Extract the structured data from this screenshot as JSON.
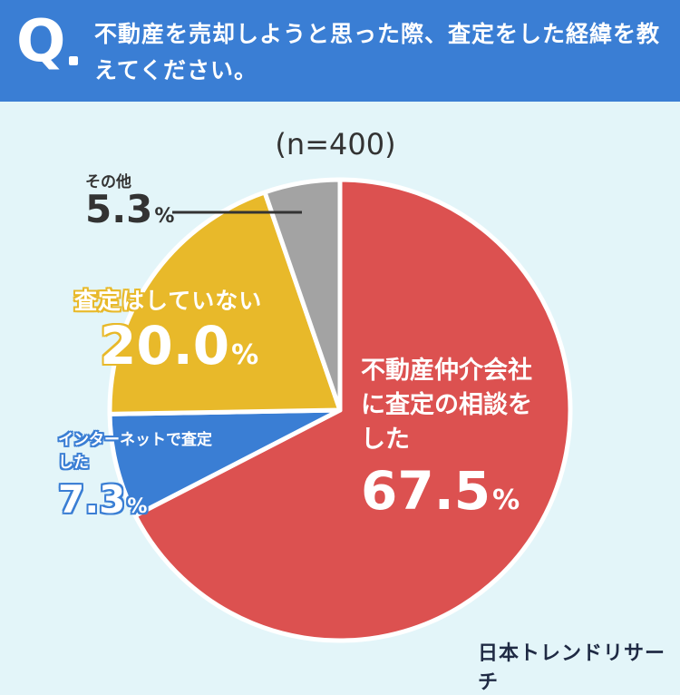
{
  "header": {
    "q_mark": "Q",
    "question": "不動産を売却しようと思った際、査定をした経緯を教えてください。"
  },
  "sample_label": "(n=400)",
  "brand": "日本トレンドリサーチ",
  "colors": {
    "header_bg": "#3a7ed4",
    "page_bg": "#e3f5f9",
    "red": "#dc5150",
    "blue": "#3a7ed4",
    "yellow": "#e8b92a",
    "gray": "#a3a3a3"
  },
  "labels": {
    "red": {
      "name": "不動産仲介会社に査定の相談をした",
      "value": "67.5",
      "unit": "%"
    },
    "blue": {
      "name": "インターネットで査定した",
      "value": "7.3",
      "unit": "%"
    },
    "yellow": {
      "name": "査定はしていない",
      "value": "20.0",
      "unit": "%"
    },
    "other": {
      "name": "その他",
      "value": "5.3",
      "unit": "%"
    }
  },
  "chart_data": {
    "type": "pie",
    "title": "",
    "n": 400,
    "start": "12 o'clock, clockwise",
    "slices": [
      {
        "label": "不動産仲介会社に査定の相談をした",
        "value": 67.5,
        "color": "#dc5150"
      },
      {
        "label": "インターネットで査定した",
        "value": 7.3,
        "color": "#3a7ed4"
      },
      {
        "label": "査定はしていない",
        "value": 20.0,
        "color": "#e8b92a"
      },
      {
        "label": "その他",
        "value": 5.3,
        "color": "#a3a3a3"
      }
    ]
  }
}
